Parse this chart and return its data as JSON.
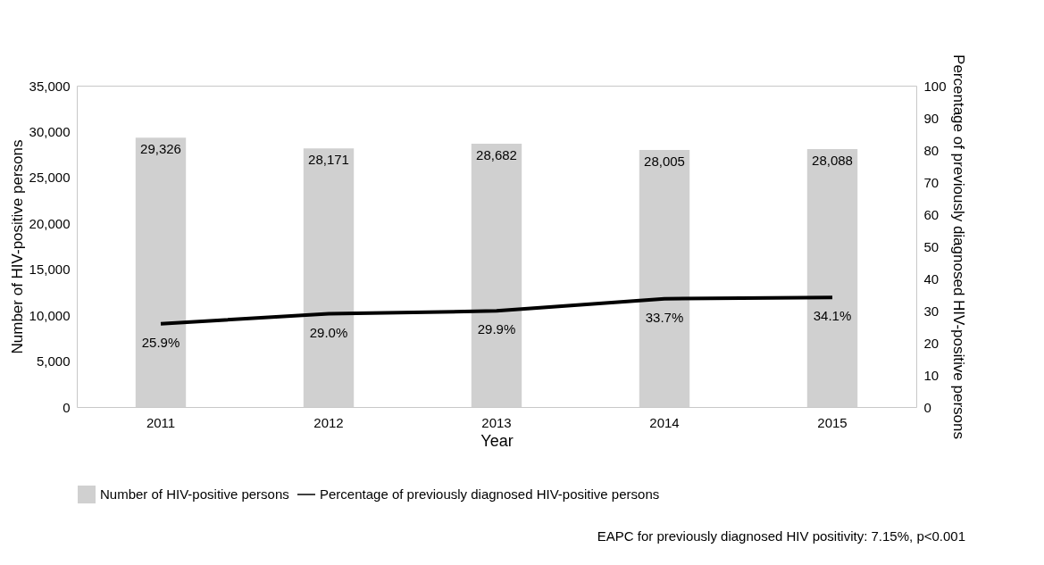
{
  "chart_data": {
    "type": "bar",
    "xlabel": "Year",
    "ylabel": "Number of HIV-positive persons",
    "y2label": "Percentage of previously diagnosed HIV-positive persons",
    "categories": [
      "2011",
      "2012",
      "2013",
      "2014",
      "2015"
    ],
    "series": [
      {
        "name": "Number of HIV-positive persons",
        "color": "#d0d0d0",
        "values": [
          29326,
          28171,
          28682,
          28005,
          28088
        ],
        "value_labels": [
          "29,326",
          "28,171",
          "28,682",
          "28,005",
          "28,088"
        ]
      },
      {
        "name": "Percentage of previously diagnosed HIV-positive persons",
        "type": "line",
        "axis": "y2",
        "color": "#000000",
        "values": [
          25.9,
          29.0,
          29.9,
          33.7,
          34.1
        ],
        "value_labels": [
          "25.9%",
          "29.0%",
          "29.9%",
          "33.7%",
          "34.1%"
        ]
      }
    ],
    "ylim": [
      0,
      35000
    ],
    "yticks": [
      {
        "value": 0,
        "label": "0"
      },
      {
        "value": 5000,
        "label": "5,000"
      },
      {
        "value": 10000,
        "label": "10,000"
      },
      {
        "value": 15000,
        "label": "15,000"
      },
      {
        "value": 20000,
        "label": "20,000"
      },
      {
        "value": 25000,
        "label": "25,000"
      },
      {
        "value": 30000,
        "label": "30,000"
      },
      {
        "value": 35000,
        "label": "35,000"
      }
    ],
    "y2lim": [
      0,
      100
    ],
    "y2ticks": [
      0,
      10,
      20,
      30,
      40,
      50,
      60,
      70,
      80,
      90,
      100
    ],
    "grid": false,
    "legend": "bottom",
    "annotations": [
      "EAPC for previously diagnosed HIV positivity: 7.15%, p<0.001"
    ]
  }
}
